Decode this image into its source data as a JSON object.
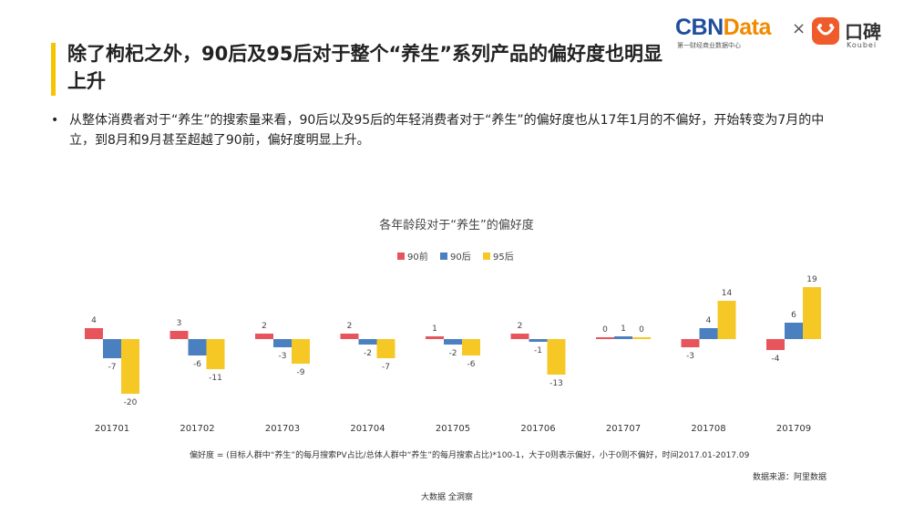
{
  "header": {
    "title": "除了枸杞之外，90后及95后对于整个“养生”系列产品的偏好度也明显上升",
    "cbn_part1": "CBN",
    "cbn_part2": "Data",
    "cbn_sub": "第一财经商业数据中心",
    "times": "×",
    "koubei_text": "口碑",
    "koubei_sub": "Koubei",
    "accent_color": "#f5c400"
  },
  "bullet": {
    "dot": "•",
    "text": "从整体消费者对于“养生”的搜索量来看，90后以及95后的年轻消费者对于“养生”的偏好度也从17年1月的不偏好，开始转变为7月的中立，到8月和9月甚至超越了90前，偏好度明显上升。"
  },
  "chart_data": {
    "type": "bar",
    "title": "各年龄段对于“养生”的偏好度",
    "categories": [
      "201701",
      "201702",
      "201703",
      "201704",
      "201705",
      "201706",
      "201707",
      "201708",
      "201709"
    ],
    "series": [
      {
        "name": "90前",
        "color": "#e8545b",
        "values": [
          4,
          3,
          2,
          2,
          1,
          2,
          0,
          -3,
          -4
        ]
      },
      {
        "name": "90后",
        "color": "#4a7fc0",
        "values": [
          -7,
          -6,
          -3,
          -2,
          -2,
          -1,
          1,
          4,
          6
        ]
      },
      {
        "name": "95后",
        "color": "#f6c826",
        "values": [
          -20,
          -11,
          -9,
          -7,
          -6,
          -13,
          0,
          14,
          19
        ]
      }
    ],
    "legend_position": "top-center",
    "grid": false
  },
  "footnote": "偏好度 = (目标人群中“养生”的每月搜索PV占比/总体人群中“养生”的每月搜索占比)*100-1，大于0则表示偏好，小于0则不偏好，时间2017.01-2017.09",
  "source": "数据来源：阿里数据",
  "bottom_mark": "大数据 全洞察"
}
